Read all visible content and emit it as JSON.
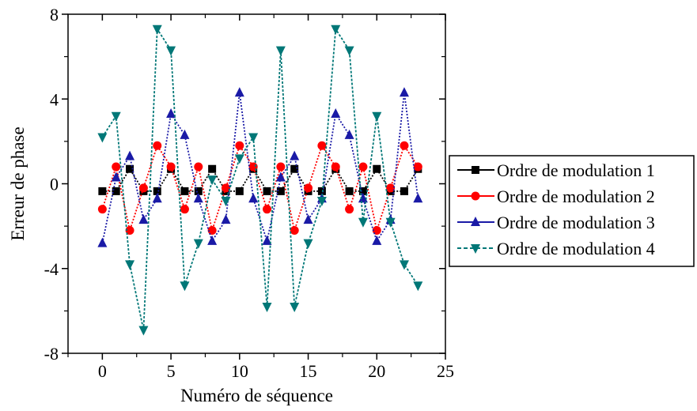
{
  "chart_data": {
    "type": "line",
    "xlabel": "Numéro de séquence",
    "ylabel": "Erreur de phase",
    "xlim": [
      -2.5,
      25
    ],
    "ylim": [
      -8,
      8
    ],
    "xticks": [
      0,
      5,
      10,
      15,
      20,
      25
    ],
    "xtick_labels": [
      "0",
      "5",
      "10",
      "15",
      "20",
      "25"
    ],
    "yticks": [
      -8,
      -4,
      0,
      4,
      8
    ],
    "ytick_labels": [
      "-8",
      "-4",
      "0",
      "4",
      "8"
    ],
    "grid": false,
    "legend_position": "right-outside",
    "x": [
      0,
      1,
      2,
      3,
      4,
      5,
      6,
      7,
      8,
      9,
      10,
      11,
      12,
      13,
      14,
      15,
      16,
      17,
      18,
      19,
      20,
      21,
      22,
      23
    ],
    "series": [
      {
        "name": "Ordre de modulation 1",
        "color": "#000000",
        "marker": "square",
        "values": [
          -0.35,
          -0.35,
          0.7,
          -0.35,
          -0.35,
          0.7,
          -0.35,
          -0.35,
          0.7,
          -0.35,
          -0.35,
          0.7,
          -0.35,
          -0.35,
          0.7,
          -0.35,
          -0.35,
          0.7,
          -0.35,
          -0.35,
          0.7,
          -0.35,
          -0.35,
          0.7
        ]
      },
      {
        "name": "Ordre de modulation 2",
        "color": "#ff0000",
        "marker": "circle",
        "values": [
          -1.2,
          0.8,
          -2.2,
          -0.2,
          1.8,
          0.8,
          -1.2,
          0.8,
          -2.2,
          -0.2,
          1.8,
          0.8,
          -1.2,
          0.8,
          -2.2,
          -0.2,
          1.8,
          0.8,
          -1.2,
          0.8,
          -2.2,
          -0.2,
          1.8,
          0.8
        ]
      },
      {
        "name": "Ordre de modulation 3",
        "color": "#1a1aa6",
        "marker": "triangle-up",
        "values": [
          -2.8,
          0.3,
          1.3,
          -1.7,
          -0.7,
          3.3,
          2.3,
          -0.7,
          -2.7,
          -1.7,
          4.3,
          -0.7,
          -2.7,
          0.3,
          1.3,
          -1.7,
          -0.7,
          3.3,
          2.3,
          -0.7,
          -2.7,
          -1.7,
          4.3,
          -0.7
        ]
      },
      {
        "name": "Ordre de modulation 4",
        "color": "#007777",
        "marker": "triangle-down",
        "values": [
          2.2,
          3.2,
          -3.8,
          -6.9,
          7.3,
          6.3,
          -4.8,
          -2.8,
          0.2,
          -0.8,
          1.2,
          2.2,
          -5.8,
          6.3,
          -5.8,
          -2.8,
          -0.8,
          7.3,
          6.3,
          -1.8,
          3.2,
          -1.8,
          -3.8,
          -4.8
        ]
      }
    ]
  }
}
